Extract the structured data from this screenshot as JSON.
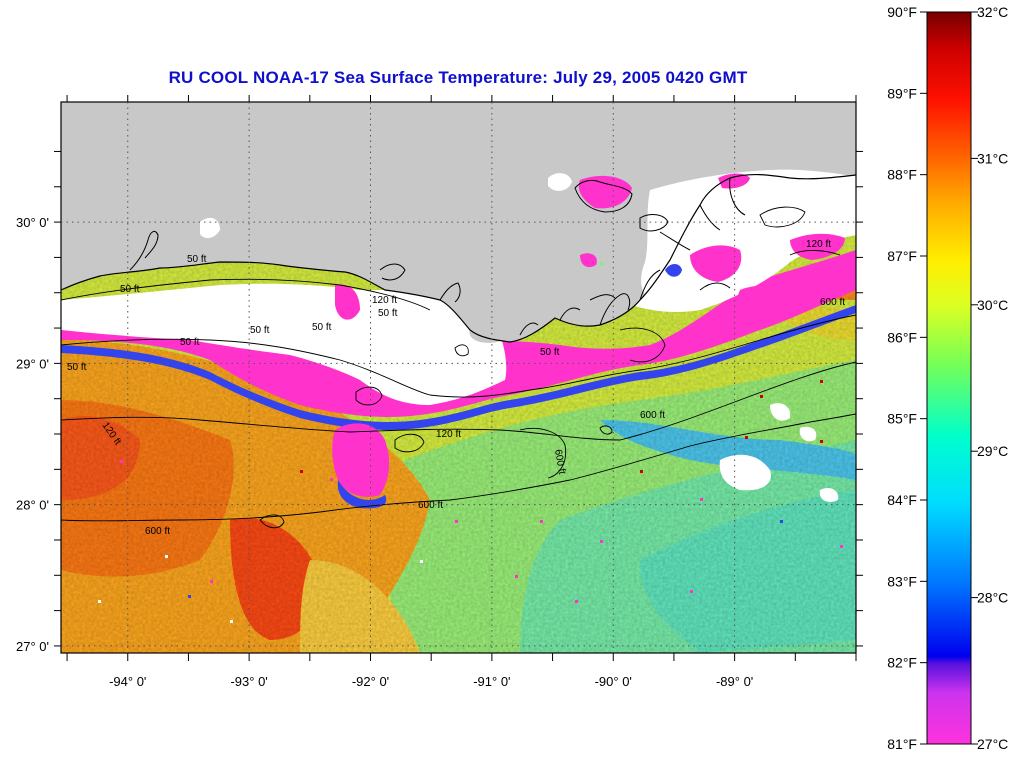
{
  "title": "RU COOL  NOAA-17  Sea Surface Temperature:  July 29, 2005 0420 GMT",
  "longitudes": [
    {
      "label": "-94° 0'",
      "value": -94
    },
    {
      "label": "-93° 0'",
      "value": -93
    },
    {
      "label": "-92° 0'",
      "value": -92
    },
    {
      "label": "-91° 0'",
      "value": -91
    },
    {
      "label": "-90° 0'",
      "value": -90
    },
    {
      "label": "-89° 0'",
      "value": -89
    }
  ],
  "latitudes": [
    {
      "label": "30° 0'",
      "value": 30
    },
    {
      "label": "29° 0'",
      "value": 29
    },
    {
      "label": "28° 0'",
      "value": 28
    },
    {
      "label": "27° 0'",
      "value": 27
    }
  ],
  "map_extent": {
    "lon_min": -94.55,
    "lon_max": -88.0,
    "lat_min": 26.95,
    "lat_max": 30.85
  },
  "contour_labels": [
    "50 ft",
    "50 ft",
    "50 ft",
    "50 ft",
    "120 ft",
    "50 ft",
    "50 ft",
    "50 ft",
    "120 ft",
    "600 ft",
    "600 ft",
    "600 ft",
    "600 ft",
    "120 ft",
    "50 ft",
    "120 ft",
    "600 ft"
  ],
  "colorbar": {
    "fahrenheit": [
      "90°F",
      "89°F",
      "88°F",
      "87°F",
      "86°F",
      "85°F",
      "84°F",
      "83°F",
      "82°F",
      "81°F"
    ],
    "celsius": [
      "32°C",
      "31°C",
      "30°C",
      "29°C",
      "28°C",
      "27°C"
    ],
    "stops": [
      "#ff33dd",
      "#cc33ee",
      "#5511dd",
      "#0000ee",
      "#0077ff",
      "#00ccff",
      "#00ffdd",
      "#66ff66",
      "#ccff33",
      "#ffff00",
      "#ffcc00",
      "#ff8800",
      "#ff4400",
      "#ee0000",
      "#880000"
    ]
  },
  "colors": {
    "land": "#c8c8c8",
    "cloud": "#ffffff",
    "coastline": "#000000",
    "title": "#1010cc"
  }
}
